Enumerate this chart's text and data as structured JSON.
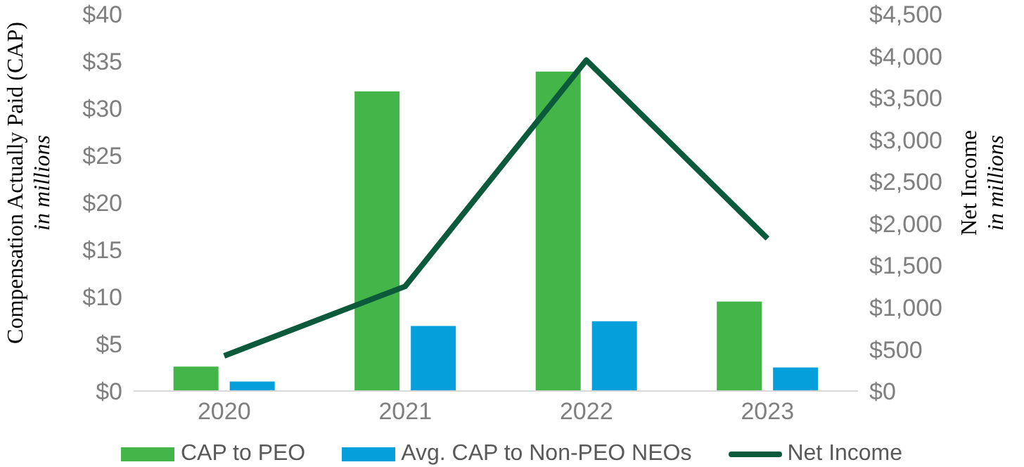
{
  "chart_data": {
    "type": "bar",
    "categories": [
      "2020",
      "2021",
      "2022",
      "2023"
    ],
    "ylabel": "Compensation Actually Paid (CAP)\nin millions",
    "y2label": "Net Income\nin millions",
    "ylim": [
      0,
      40
    ],
    "yticks": [
      {
        "value": 0,
        "label": "$0"
      },
      {
        "value": 5,
        "label": "$5"
      },
      {
        "value": 10,
        "label": "$10"
      },
      {
        "value": 15,
        "label": "$15"
      },
      {
        "value": 20,
        "label": "$20"
      },
      {
        "value": 25,
        "label": "$25"
      },
      {
        "value": 30,
        "label": "$30"
      },
      {
        "value": 35,
        "label": "$35"
      },
      {
        "value": 40,
        "label": "$40"
      }
    ],
    "y2lim": [
      0,
      4500
    ],
    "y2ticks": [
      {
        "value": 0,
        "label": "$0"
      },
      {
        "value": 500,
        "label": "$500"
      },
      {
        "value": 1000,
        "label": "$1,000"
      },
      {
        "value": 1500,
        "label": "$1,500"
      },
      {
        "value": 2000,
        "label": "$2,000"
      },
      {
        "value": 2500,
        "label": "$2,500"
      },
      {
        "value": 3000,
        "label": "$3,000"
      },
      {
        "value": 3500,
        "label": "$3,500"
      },
      {
        "value": 4000,
        "label": "$4,000"
      },
      {
        "value": 4500,
        "label": "$4,500"
      }
    ],
    "series": [
      {
        "name": "CAP to PEO",
        "color": "#43b549",
        "values": [
          2.6,
          31.8,
          33.9,
          9.5
        ]
      },
      {
        "name": "Avg. CAP to Non-PEO NEOs",
        "color": "#05a0dc",
        "values": [
          1.0,
          6.9,
          7.4,
          2.5
        ]
      },
      {
        "name": "Net Income",
        "type": "line",
        "axis": "y2",
        "color": "#0b5a3c",
        "values": [
          420,
          1250,
          3950,
          1820
        ]
      }
    ],
    "legend": "bottom"
  }
}
